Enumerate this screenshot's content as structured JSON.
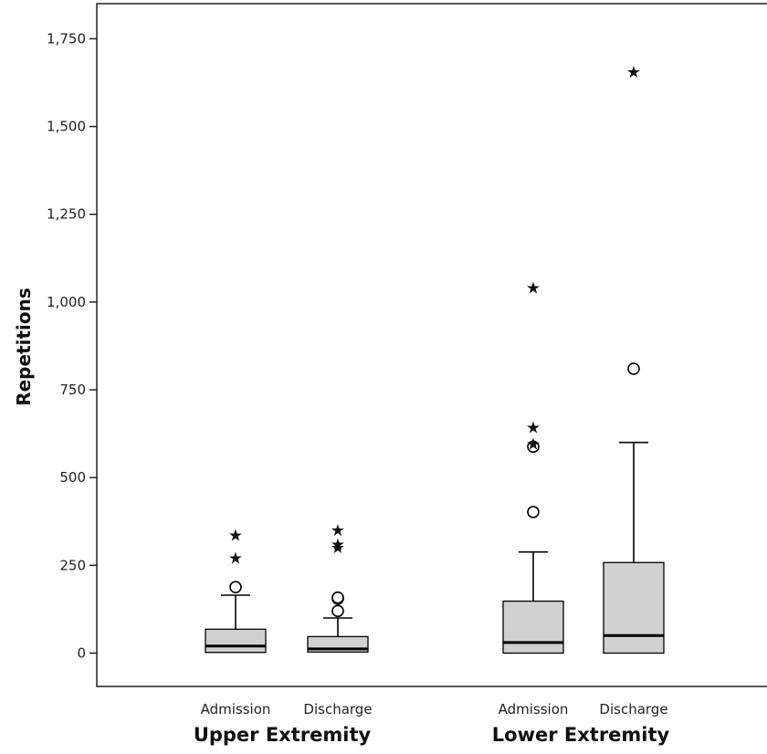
{
  "chart_data": {
    "type": "boxplot",
    "ylabel": "Repetitions",
    "ylim": [
      -95,
      1850
    ],
    "yticks": [
      0,
      250,
      500,
      750,
      1000,
      1250,
      1500,
      1750
    ],
    "ytick_labels": [
      "0",
      "250",
      "500",
      "750",
      "1,000",
      "1,250",
      "1,500",
      "1,750"
    ],
    "groups": [
      {
        "label": "Upper Extremity",
        "boxes": [
          {
            "label": "Admission",
            "min": 0,
            "q1": 2,
            "median": 20,
            "q3": 68,
            "max": 165,
            "outliers_circle": [
              188
            ],
            "outliers_star": [
              275,
              340
            ]
          },
          {
            "label": "Discharge",
            "min": 0,
            "q1": 3,
            "median": 12,
            "q3": 47,
            "max": 100,
            "outliers_circle": [
              120,
              155,
              158
            ],
            "outliers_star": [
              305,
              315,
              355
            ]
          }
        ]
      },
      {
        "label": "Lower Extremity",
        "boxes": [
          {
            "label": "Admission",
            "min": 0,
            "q1": 0,
            "median": 30,
            "q3": 148,
            "max": 288,
            "outliers_circle": [
              402,
              588
            ],
            "outliers_star": [
              600,
              648,
              1045
            ]
          },
          {
            "label": "Discharge",
            "min": 0,
            "q1": 0,
            "median": 50,
            "q3": 258,
            "max": 600,
            "outliers_circle": [
              810
            ],
            "outliers_star": [
              1660
            ]
          }
        ]
      }
    ]
  }
}
